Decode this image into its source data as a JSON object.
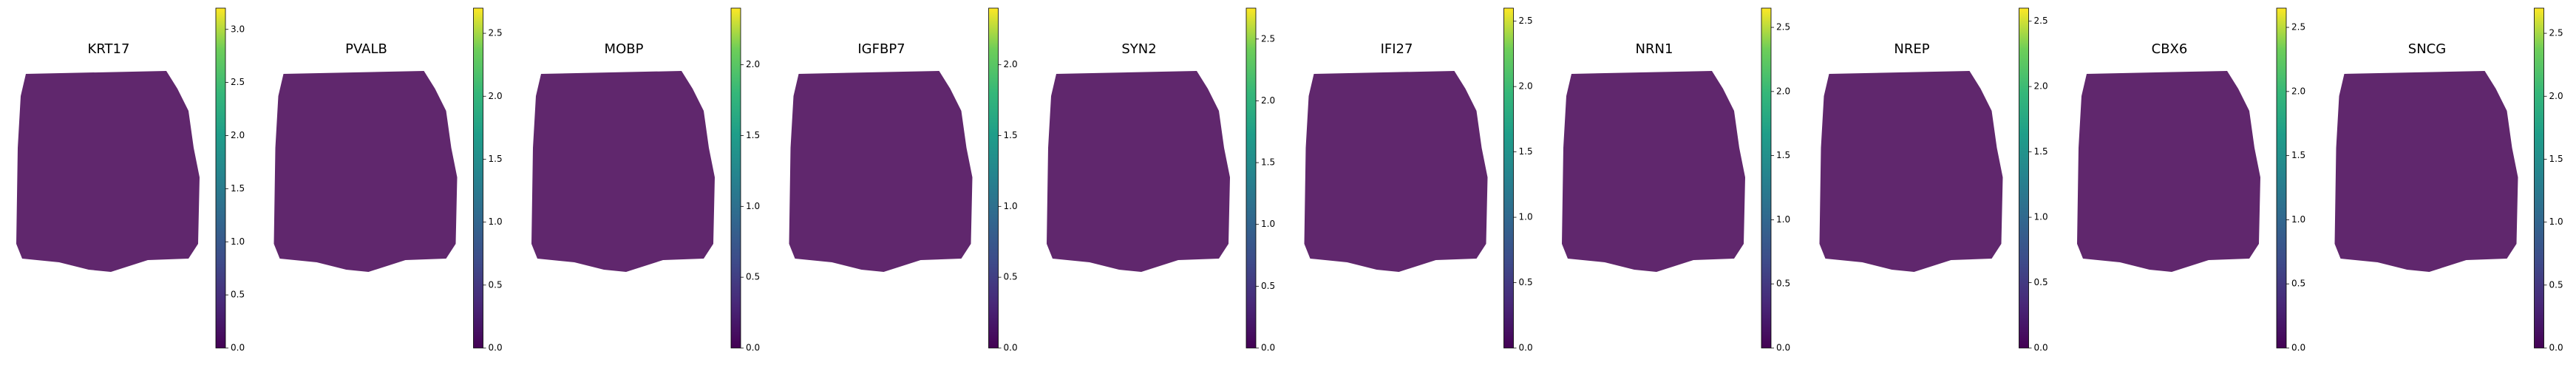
{
  "chart_data": [
    {
      "type": "scatter",
      "title": "KRT17",
      "colormap": "viridis",
      "clim": [
        0,
        3.2
      ],
      "cticks": [
        {
          "value": 0,
          "label": "0.0"
        },
        0.5,
        {
          "value": 1,
          "label": "1.0"
        },
        1.5,
        {
          "value": 2,
          "label": "2.0"
        },
        2.5,
        {
          "value": 3,
          "label": "3.0"
        }
      ]
    },
    {
      "type": "scatter",
      "title": "PVALB",
      "colormap": "viridis",
      "clim": [
        0,
        2.7
      ],
      "cticks": [
        {
          "value": 0,
          "label": "0.0"
        },
        0.5,
        {
          "value": 1,
          "label": "1.0"
        },
        1.5,
        {
          "value": 2,
          "label": "2.0"
        },
        2.5
      ]
    },
    {
      "type": "scatter",
      "title": "MOBP",
      "colormap": "viridis",
      "clim": [
        0,
        2.4
      ],
      "cticks": [
        {
          "value": 0,
          "label": "0.0"
        },
        0.5,
        {
          "value": 1,
          "label": "1.0"
        },
        1.5,
        {
          "value": 2,
          "label": "2.0"
        }
      ]
    },
    {
      "type": "scatter",
      "title": "IGFBP7",
      "colormap": "viridis",
      "clim": [
        0,
        2.4
      ],
      "cticks": [
        {
          "value": 0,
          "label": "0.0"
        },
        0.5,
        {
          "value": 1,
          "label": "1.0"
        },
        1.5,
        {
          "value": 2,
          "label": "2.0"
        }
      ]
    },
    {
      "type": "scatter",
      "title": "SYN2",
      "colormap": "viridis",
      "clim": [
        0,
        2.75
      ],
      "cticks": [
        {
          "value": 0,
          "label": "0.0"
        },
        0.5,
        {
          "value": 1,
          "label": "1.0"
        },
        1.5,
        {
          "value": 2,
          "label": "2.0"
        },
        2.5
      ]
    },
    {
      "type": "scatter",
      "title": "IFI27",
      "colormap": "viridis",
      "clim": [
        0,
        2.6
      ],
      "cticks": [
        {
          "value": 0,
          "label": "0.0"
        },
        0.5,
        {
          "value": 1,
          "label": "1.0"
        },
        1.5,
        {
          "value": 2,
          "label": "2.0"
        },
        2.5
      ]
    },
    {
      "type": "scatter",
      "title": "NRN1",
      "colormap": "viridis",
      "clim": [
        0,
        2.65
      ],
      "cticks": [
        {
          "value": 0,
          "label": "0.0"
        },
        0.5,
        {
          "value": 1,
          "label": "1.0"
        },
        1.5,
        {
          "value": 2,
          "label": "2.0"
        },
        2.5
      ]
    },
    {
      "type": "scatter",
      "title": "NREP",
      "colormap": "viridis",
      "clim": [
        0,
        2.6
      ],
      "cticks": [
        {
          "value": 0,
          "label": "0.0"
        },
        0.5,
        {
          "value": 1,
          "label": "1.0"
        },
        1.5,
        {
          "value": 2,
          "label": "2.0"
        },
        2.5
      ]
    },
    {
      "type": "scatter",
      "title": "CBX6",
      "colormap": "viridis",
      "clim": [
        0,
        2.65
      ],
      "cticks": [
        {
          "value": 0,
          "label": "0.0"
        },
        0.5,
        {
          "value": 1,
          "label": "1.0"
        },
        1.5,
        {
          "value": 2,
          "label": "2.0"
        },
        2.5
      ]
    },
    {
      "type": "scatter",
      "title": "SNCG",
      "colormap": "viridis",
      "clim": [
        0,
        2.7
      ],
      "cticks": [
        {
          "value": 0,
          "label": "0.0"
        },
        0.5,
        {
          "value": 1,
          "label": "1.0"
        },
        1.5,
        {
          "value": 2,
          "label": "2.0"
        },
        2.5
      ]
    }
  ]
}
